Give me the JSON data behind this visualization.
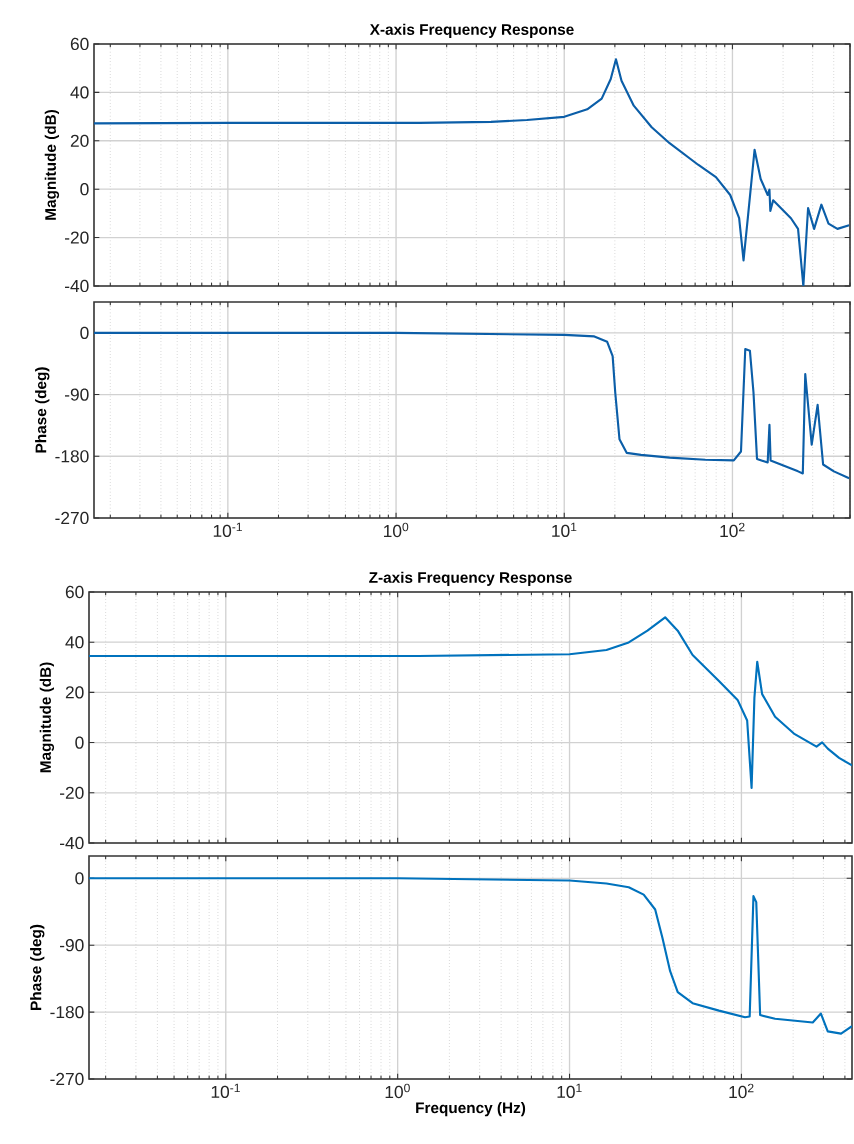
{
  "chart_data": [
    {
      "type": "line",
      "title": "X-axis Frequency Response",
      "ylabel": "Magnitude (dB)",
      "log": "x",
      "grid": true,
      "tick_labels": "y",
      "xlim": [
        0.016,
        500
      ],
      "ylim": [
        -40,
        60
      ],
      "xticks": [
        {
          "value": 0.1,
          "label": null
        },
        {
          "value": 1,
          "label": null
        },
        {
          "value": 10,
          "label": null
        },
        {
          "value": 100,
          "label": null
        }
      ],
      "yticks": [
        -40,
        -20,
        0,
        20,
        40,
        60
      ],
      "x": [
        0.016,
        0.1,
        1,
        1.38,
        3.67,
        6,
        10,
        13.7,
        16.7,
        18.9,
        20.3,
        21.9,
        25.9,
        33.1,
        42.3,
        62.5,
        79.8,
        97,
        109.6,
        116.4,
        124,
        135.4,
        147.2,
        162,
        166,
        168,
        174.6,
        222.8,
        245.5,
        264,
        281.7,
        306,
        338,
        372.6,
        421,
        494
      ],
      "series": [
        {
          "color": "#0b5ea8",
          "values": [
            27.2,
            27.4,
            27.4,
            27.4,
            27.8,
            28.6,
            29.9,
            33,
            37.4,
            45.5,
            53.7,
            44.8,
            34.5,
            25.6,
            19,
            10.1,
            5,
            -2.4,
            -12,
            -29.4,
            -10.5,
            16.3,
            4.2,
            -2.4,
            -0.2,
            -9,
            -4.6,
            -12,
            -16.4,
            -40,
            -7.8,
            -16.4,
            -6.4,
            -14.2,
            -16.4,
            -14.9
          ]
        }
      ]
    },
    {
      "type": "line",
      "ylabel": "Phase (deg)",
      "log": "x",
      "grid": true,
      "xlim": [
        0.016,
        500
      ],
      "ylim": [
        -270,
        45
      ],
      "xticks": [
        {
          "value": 0.1,
          "label": "10$^{-1}$"
        },
        {
          "value": 1,
          "label": "10$^{0}$"
        },
        {
          "value": 10,
          "label": "10$^{1}$"
        },
        {
          "value": 100,
          "label": "10$^{2}$"
        }
      ],
      "yticks": [
        -270,
        -180,
        -90,
        0
      ],
      "x": [
        0.016,
        0.1,
        1,
        10,
        15.1,
        18,
        19.4,
        20.1,
        21.3,
        23.5,
        28.6,
        42.3,
        69,
        101.9,
        112.4,
        119.2,
        127,
        133.4,
        140,
        162,
        166,
        168.6,
        245.5,
        262,
        271,
        296,
        321,
        346,
        401,
        494
      ],
      "series": [
        {
          "color": "#0b5ea8",
          "values": [
            0,
            0,
            0,
            -3,
            -5.2,
            -13,
            -34,
            -87,
            -155,
            -175,
            -178,
            -182,
            -185,
            -186,
            -173,
            -23.6,
            -26,
            -87,
            -184,
            -189,
            -134,
            -186,
            -202,
            -205,
            -60,
            -163,
            -105,
            -192,
            -202,
            -212
          ]
        }
      ]
    },
    {
      "type": "line",
      "title": "Z-axis Frequency Response",
      "ylabel": "Magnitude (dB)",
      "log": "x",
      "grid": true,
      "tick_labels": "y",
      "xlim": [
        0.016,
        440
      ],
      "ylim": [
        -40,
        60
      ],
      "xticks": [
        {
          "value": 0.1,
          "label": null
        },
        {
          "value": 1,
          "label": null
        },
        {
          "value": 10,
          "label": null
        },
        {
          "value": 100,
          "label": null
        }
      ],
      "yticks": [
        -40,
        -20,
        0,
        20,
        40,
        60
      ],
      "x": [
        0.016,
        0.1,
        1,
        1.32,
        10,
        16.4,
        22.1,
        28.4,
        36,
        42.6,
        52,
        74,
        95,
        108,
        114.6,
        119,
        123.6,
        132,
        157,
        202,
        273.5,
        295,
        318,
        370,
        440
      ],
      "series": [
        {
          "color": "#0072bd",
          "values": [
            34.5,
            34.5,
            34.5,
            34.5,
            35.2,
            36.9,
            39.9,
            44.6,
            49.9,
            44.6,
            34.9,
            24.5,
            17,
            8.8,
            -18.1,
            17.8,
            32.2,
            19.3,
            10.3,
            3.6,
            -1.6,
            0.1,
            -2.4,
            -6.1,
            -9.1
          ]
        }
      ]
    },
    {
      "type": "line",
      "ylabel": "Phase (deg)",
      "xlabel": "Frequency  (Hz)",
      "log": "x",
      "grid": true,
      "xlim": [
        0.016,
        440
      ],
      "ylim": [
        -270,
        30
      ],
      "xticks": [
        {
          "value": 0.1,
          "label": "10$^{-1}$"
        },
        {
          "value": 1,
          "label": "10$^{0}$"
        },
        {
          "value": 10,
          "label": "10$^{1}$"
        },
        {
          "value": 100,
          "label": "10$^{2}$"
        }
      ],
      "yticks": [
        -270,
        -180,
        -90,
        0
      ],
      "x": [
        0.016,
        0.1,
        1,
        10,
        16.4,
        22.1,
        27,
        31.5,
        34.7,
        38.5,
        42.6,
        52,
        74,
        105,
        111.7,
        117.5,
        122,
        128.5,
        157,
        260,
        290,
        318,
        380,
        440
      ],
      "series": [
        {
          "color": "#0072bd",
          "values": [
            0,
            0,
            0,
            -3,
            -7,
            -12,
            -22,
            -42,
            -80,
            -125,
            -153,
            -168,
            -178,
            -187,
            -186,
            -24,
            -32,
            -184,
            -189,
            -194,
            -182,
            -206,
            -209,
            -199
          ]
        }
      ]
    }
  ]
}
